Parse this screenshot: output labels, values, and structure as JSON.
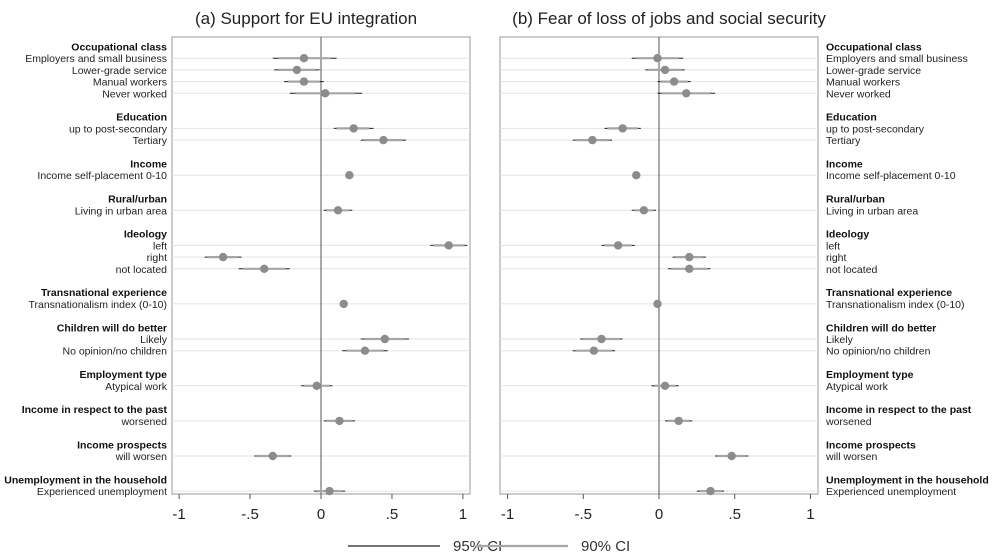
{
  "chart_data": [
    {
      "type": "scatter",
      "title": "(a) Support for EU integration",
      "xlim": [
        -1.05,
        1.05
      ],
      "xticks": [
        "-1",
        "-.5",
        "0",
        ".5",
        "1"
      ],
      "xtick_values": [
        -1,
        -0.5,
        0,
        0.5,
        1
      ],
      "grid": true,
      "label_side": "left",
      "groups": [
        {
          "name": "Occupational class",
          "items": [
            {
              "label": "Employers and small business",
              "est": -0.12,
              "ci95": [
                -0.34,
                0.11
              ],
              "ci90": [
                -0.3,
                0.07
              ]
            },
            {
              "label": "Lower-grade service",
              "est": -0.17,
              "ci95": [
                -0.33,
                -0.01
              ],
              "ci90": [
                -0.3,
                -0.04
              ]
            },
            {
              "label": "Manual workers",
              "est": -0.12,
              "ci95": [
                -0.26,
                0.02
              ],
              "ci90": [
                -0.23,
                -0.01
              ]
            },
            {
              "label": "Never worked",
              "est": 0.03,
              "ci95": [
                -0.22,
                0.29
              ],
              "ci90": [
                -0.18,
                0.24
              ]
            }
          ]
        },
        {
          "name": "Education",
          "items": [
            {
              "label": "up to post-secondary",
              "est": 0.23,
              "ci95": [
                0.09,
                0.37
              ],
              "ci90": [
                0.11,
                0.34
              ]
            },
            {
              "label": "Tertiary",
              "est": 0.44,
              "ci95": [
                0.28,
                0.6
              ],
              "ci90": [
                0.31,
                0.57
              ]
            }
          ]
        },
        {
          "name": "Income",
          "items": [
            {
              "label": "Income self-placement 0-10",
              "est": 0.2,
              "ci95": [
                0.18,
                0.22
              ],
              "ci90": [
                0.185,
                0.215
              ]
            }
          ]
        },
        {
          "name": "Rural/urban",
          "items": [
            {
              "label": "Living in urban area",
              "est": 0.12,
              "ci95": [
                0.02,
                0.22
              ],
              "ci90": [
                0.04,
                0.2
              ]
            }
          ]
        },
        {
          "name": "Ideology",
          "items": [
            {
              "label": "left",
              "est": 0.9,
              "ci95": [
                0.77,
                1.03
              ],
              "ci90": [
                0.79,
                1.01
              ]
            },
            {
              "label": "right",
              "est": -0.69,
              "ci95": [
                -0.82,
                -0.56
              ],
              "ci90": [
                -0.8,
                -0.58
              ]
            },
            {
              "label": "not located",
              "est": -0.4,
              "ci95": [
                -0.58,
                -0.22
              ],
              "ci90": [
                -0.55,
                -0.25
              ]
            }
          ]
        },
        {
          "name": "Transnational experience",
          "items": [
            {
              "label": "Transnationalism index (0-10)",
              "est": 0.16,
              "ci95": [
                0.14,
                0.18
              ],
              "ci90": [
                0.145,
                0.175
              ]
            }
          ]
        },
        {
          "name": "Children will do better",
          "items": [
            {
              "label": "Likely",
              "est": 0.45,
              "ci95": [
                0.28,
                0.62
              ],
              "ci90": [
                0.31,
                0.59
              ]
            },
            {
              "label": "No opinion/no children",
              "est": 0.31,
              "ci95": [
                0.15,
                0.47
              ],
              "ci90": [
                0.18,
                0.44
              ]
            }
          ]
        },
        {
          "name": "Employment type",
          "items": [
            {
              "label": "Atypical work",
              "est": -0.03,
              "ci95": [
                -0.14,
                0.08
              ],
              "ci90": [
                -0.12,
                0.06
              ]
            }
          ]
        },
        {
          "name": "Income in respect to the past",
          "items": [
            {
              "label": "worsened",
              "est": 0.13,
              "ci95": [
                0.02,
                0.24
              ],
              "ci90": [
                0.04,
                0.22
              ]
            }
          ]
        },
        {
          "name": "Income prospects",
          "items": [
            {
              "label": "will worsen",
              "est": -0.34,
              "ci95": [
                -0.47,
                -0.21
              ],
              "ci90": [
                -0.45,
                -0.23
              ]
            }
          ]
        },
        {
          "name": "Unemployment in the household",
          "items": [
            {
              "label": "Experienced unemployment",
              "est": 0.06,
              "ci95": [
                -0.05,
                0.17
              ],
              "ci90": [
                -0.03,
                0.15
              ]
            }
          ]
        }
      ]
    },
    {
      "type": "scatter",
      "title": "(b) Fear of loss of jobs and social security",
      "xlim": [
        -1.05,
        1.05
      ],
      "xticks": [
        "-1",
        "-.5",
        "0",
        ".5",
        "1"
      ],
      "xtick_values": [
        -1,
        -0.5,
        0,
        0.5,
        1
      ],
      "grid": true,
      "label_side": "right",
      "groups": [
        {
          "name": "Occupational class",
          "items": [
            {
              "label": "Employers and small business",
              "est": -0.01,
              "ci95": [
                -0.18,
                0.16
              ],
              "ci90": [
                -0.15,
                0.13
              ]
            },
            {
              "label": "Lower-grade service",
              "est": 0.04,
              "ci95": [
                -0.09,
                0.17
              ],
              "ci90": [
                -0.07,
                0.15
              ]
            },
            {
              "label": "Manual workers",
              "est": 0.1,
              "ci95": [
                -0.01,
                0.21
              ],
              "ci90": [
                0.01,
                0.19
              ]
            },
            {
              "label": "Never worked",
              "est": 0.18,
              "ci95": [
                -0.01,
                0.37
              ],
              "ci90": [
                0.02,
                0.34
              ]
            }
          ]
        },
        {
          "name": "Education",
          "items": [
            {
              "label": "up to post-secondary",
              "est": -0.24,
              "ci95": [
                -0.36,
                -0.12
              ],
              "ci90": [
                -0.34,
                -0.14
              ]
            },
            {
              "label": "Tertiary",
              "est": -0.44,
              "ci95": [
                -0.57,
                -0.31
              ],
              "ci90": [
                -0.55,
                -0.33
              ]
            }
          ]
        },
        {
          "name": "Income",
          "items": [
            {
              "label": "Income self-placement 0-10",
              "est": -0.15,
              "ci95": [
                -0.17,
                -0.13
              ],
              "ci90": [
                -0.165,
                -0.135
              ]
            }
          ]
        },
        {
          "name": "Rural/urban",
          "items": [
            {
              "label": "Living in urban area",
              "est": -0.1,
              "ci95": [
                -0.18,
                -0.02
              ],
              "ci90": [
                -0.16,
                -0.04
              ]
            }
          ]
        },
        {
          "name": "Ideology",
          "items": [
            {
              "label": "left",
              "est": -0.27,
              "ci95": [
                -0.38,
                -0.16
              ],
              "ci90": [
                -0.36,
                -0.18
              ]
            },
            {
              "label": "right",
              "est": 0.2,
              "ci95": [
                0.09,
                0.31
              ],
              "ci90": [
                0.11,
                0.29
              ]
            },
            {
              "label": "not located",
              "est": 0.2,
              "ci95": [
                0.06,
                0.34
              ],
              "ci90": [
                0.08,
                0.32
              ]
            }
          ]
        },
        {
          "name": "Transnational experience",
          "items": [
            {
              "label": "Transnationalism index (0-10)",
              "est": -0.01,
              "ci95": [
                -0.02,
                0.0
              ],
              "ci90": [
                -0.015,
                -0.005
              ]
            }
          ]
        },
        {
          "name": "Children will do better",
          "items": [
            {
              "label": "Likely",
              "est": -0.38,
              "ci95": [
                -0.52,
                -0.24
              ],
              "ci90": [
                -0.5,
                -0.26
              ]
            },
            {
              "label": "No opinion/no children",
              "est": -0.43,
              "ci95": [
                -0.57,
                -0.29
              ],
              "ci90": [
                -0.55,
                -0.31
              ]
            }
          ]
        },
        {
          "name": "Employment type",
          "items": [
            {
              "label": "Atypical work",
              "est": 0.04,
              "ci95": [
                -0.05,
                0.13
              ],
              "ci90": [
                -0.03,
                0.11
              ]
            }
          ]
        },
        {
          "name": "Income in respect to the past",
          "items": [
            {
              "label": "worsened",
              "est": 0.13,
              "ci95": [
                0.04,
                0.22
              ],
              "ci90": [
                0.06,
                0.2
              ]
            }
          ]
        },
        {
          "name": "Income prospects",
          "items": [
            {
              "label": "will worsen",
              "est": 0.48,
              "ci95": [
                0.37,
                0.59
              ],
              "ci90": [
                0.39,
                0.57
              ]
            }
          ]
        },
        {
          "name": "Unemployment in the household",
          "items": [
            {
              "label": "Experienced unemployment",
              "est": 0.34,
              "ci95": [
                0.25,
                0.43
              ],
              "ci90": [
                0.27,
                0.41
              ]
            }
          ]
        }
      ]
    }
  ],
  "legend": {
    "placement": "bottom",
    "entries": [
      {
        "label": "95% CI",
        "color": "#222222"
      },
      {
        "label": "90% CI",
        "color": "#a6a6a6"
      }
    ]
  },
  "colors": {
    "marker": "#8c8c8c",
    "ci95": "#222222",
    "ci90": "#a6a6a6",
    "grid": "#e3e3e3",
    "zero_line": "#555555"
  }
}
